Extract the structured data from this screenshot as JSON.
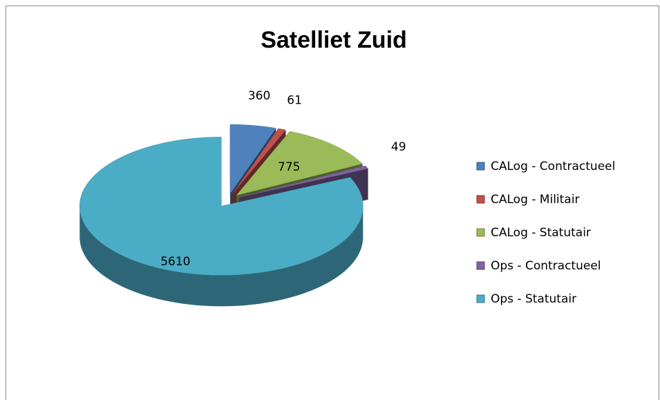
{
  "chart_data": {
    "type": "pie",
    "title": "Satelliet Zuid",
    "categories": [
      "CALog - Contractueel",
      "CALog - Militair",
      "CALog - Statutair",
      "Ops - Contractueel",
      "Ops - Statutair"
    ],
    "values": [
      360,
      61,
      775,
      49,
      5610
    ],
    "colors": [
      "#4f81bd",
      "#c0504d",
      "#9bbb59",
      "#8064a2",
      "#4bacc6"
    ],
    "legend": "right"
  }
}
